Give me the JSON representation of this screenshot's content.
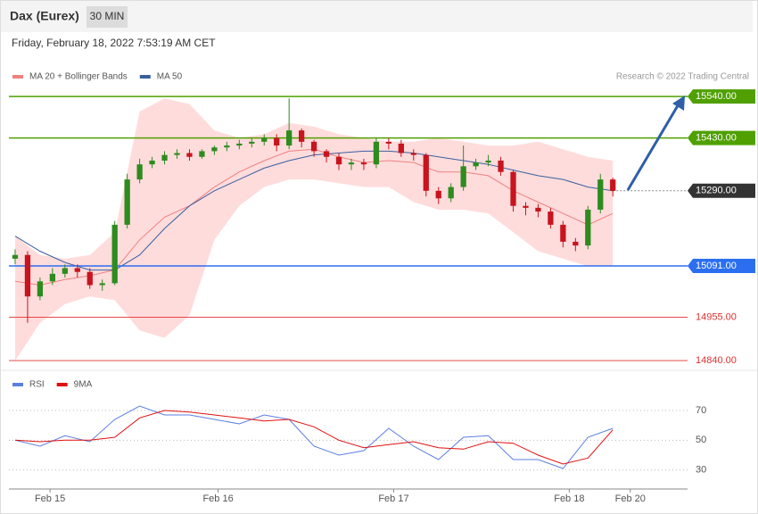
{
  "header": {
    "title": "Dax (Eurex)",
    "interval": "30 MIN",
    "timestamp": "Friday, February 18, 2022 7:53:19 AM CET"
  },
  "chart_data": [
    {
      "type": "candlestick",
      "credit": "Research © 2022 Trading Central",
      "up_color": "#2e8b1e",
      "down_color": "#c8141e",
      "x": [
        0,
        1,
        2,
        3,
        4,
        5,
        6,
        7,
        8,
        9,
        10,
        11,
        12,
        13,
        14,
        15,
        16,
        17,
        18,
        19,
        20,
        21,
        22,
        23,
        24,
        25,
        26,
        27,
        28,
        29,
        30,
        31,
        32,
        33,
        34,
        35,
        36,
        37,
        38,
        39,
        40,
        41,
        42,
        43,
        44,
        45,
        46,
        47,
        48
      ],
      "open": [
        15110,
        15120,
        15010,
        15050,
        15070,
        15085,
        15075,
        15040,
        15045,
        15200,
        15320,
        15360,
        15370,
        15385,
        15390,
        15380,
        15395,
        15405,
        15410,
        15415,
        15420,
        15430,
        15410,
        15450,
        15420,
        15395,
        15380,
        15360,
        15365,
        15360,
        15420,
        15415,
        15390,
        15385,
        15290,
        15270,
        15300,
        15355,
        15365,
        15370,
        15340,
        15250,
        15245,
        15235,
        15200,
        15155,
        15145,
        15240,
        15320
      ],
      "high": [
        15135,
        15130,
        15060,
        15085,
        15095,
        15095,
        15085,
        15055,
        15210,
        15335,
        15375,
        15380,
        15395,
        15400,
        15400,
        15400,
        15410,
        15420,
        15425,
        15430,
        15440,
        15440,
        15535,
        15455,
        15425,
        15400,
        15390,
        15375,
        15375,
        15430,
        15430,
        15425,
        15400,
        15390,
        15300,
        15310,
        15410,
        15375,
        15385,
        15380,
        15345,
        15260,
        15255,
        15245,
        15210,
        15165,
        15250,
        15335,
        15325
      ],
      "low": [
        15095,
        14940,
        15000,
        15040,
        15060,
        15060,
        15030,
        15025,
        15040,
        15190,
        15310,
        15350,
        15360,
        15375,
        15370,
        15375,
        15385,
        15395,
        15400,
        15405,
        15410,
        15395,
        15400,
        15405,
        15380,
        15365,
        15345,
        15345,
        15345,
        15350,
        15400,
        15380,
        15370,
        15275,
        15255,
        15260,
        15290,
        15345,
        15355,
        15330,
        15235,
        15225,
        15220,
        15190,
        15140,
        15130,
        15135,
        15230,
        15275
      ],
      "close": [
        15120,
        15010,
        15050,
        15070,
        15085,
        15075,
        15040,
        15045,
        15200,
        15320,
        15360,
        15370,
        15385,
        15390,
        15380,
        15395,
        15405,
        15410,
        15415,
        15420,
        15430,
        15410,
        15450,
        15420,
        15395,
        15380,
        15360,
        15365,
        15360,
        15420,
        15415,
        15390,
        15385,
        15290,
        15270,
        15300,
        15355,
        15365,
        15370,
        15340,
        15250,
        15245,
        15235,
        15200,
        15155,
        15145,
        15240,
        15320,
        15290
      ],
      "overlays": [
        {
          "name": "MA 20 + Bollinger Bands",
          "color": "#f08080",
          "band_color": "#ffdcdc",
          "x": [
            0,
            2,
            4,
            6,
            8,
            10,
            12,
            14,
            16,
            18,
            20,
            22,
            24,
            26,
            28,
            30,
            32,
            34,
            36,
            38,
            40,
            42,
            44,
            46,
            48
          ],
          "values": [
            15050,
            15040,
            15055,
            15065,
            15080,
            15160,
            15220,
            15250,
            15300,
            15340,
            15370,
            15395,
            15400,
            15380,
            15365,
            15370,
            15365,
            15340,
            15340,
            15330,
            15290,
            15260,
            15230,
            15200,
            15230
          ],
          "upper": [
            15170,
            15120,
            15110,
            15120,
            15180,
            15500,
            15535,
            15520,
            15450,
            15430,
            15440,
            15470,
            15460,
            15440,
            15430,
            15420,
            15420,
            15430,
            15420,
            15410,
            15410,
            15420,
            15400,
            15380,
            15370
          ],
          "lower": [
            14840,
            14940,
            14990,
            15010,
            15000,
            14920,
            14900,
            14960,
            15160,
            15250,
            15300,
            15320,
            15320,
            15310,
            15300,
            15300,
            15260,
            15240,
            15240,
            15230,
            15180,
            15130,
            15110,
            15090,
            15090
          ]
        },
        {
          "name": "MA 50",
          "color": "#3a5fa0",
          "x": [
            0,
            2,
            4,
            6,
            8,
            10,
            12,
            14,
            16,
            18,
            20,
            22,
            24,
            26,
            28,
            30,
            32,
            34,
            36,
            38,
            40,
            42,
            44,
            46,
            48
          ],
          "values": [
            15170,
            15130,
            15100,
            15080,
            15080,
            15120,
            15190,
            15250,
            15290,
            15320,
            15350,
            15370,
            15385,
            15390,
            15395,
            15395,
            15390,
            15380,
            15370,
            15360,
            15345,
            15330,
            15320,
            15300,
            15290
          ]
        }
      ],
      "levels": [
        {
          "value": 15540,
          "label": "15540.00",
          "color": "#4fa000",
          "boxed": true
        },
        {
          "value": 15430,
          "label": "15430.00",
          "color": "#4fa000",
          "boxed": true
        },
        {
          "value": 15290,
          "label": "15290.00",
          "color": "#333333",
          "boxed": true
        },
        {
          "value": 15091,
          "label": "15091.00",
          "color": "#2b6ff0",
          "boxed": true
        },
        {
          "value": 14955,
          "label": "14955.00",
          "color": "#e03030",
          "boxed": false
        },
        {
          "value": 14840,
          "label": "14840.00",
          "color": "#e03030",
          "boxed": false
        }
      ],
      "xlim": [
        -0.5,
        54
      ],
      "ylim": [
        14826,
        15571
      ]
    },
    {
      "type": "line",
      "x": [
        0,
        2,
        4,
        6,
        8,
        10,
        12,
        14,
        16,
        18,
        20,
        22,
        24,
        26,
        28,
        30,
        32,
        34,
        36,
        38,
        40,
        42,
        44,
        46,
        48
      ],
      "series": [
        {
          "name": "RSI",
          "color": "#5a7fe0",
          "values": [
            50,
            46,
            53,
            49,
            64,
            73,
            67,
            67,
            64,
            61,
            67,
            64,
            46,
            40,
            43,
            58,
            46,
            37,
            52,
            53,
            37,
            37,
            31,
            52,
            58
          ]
        },
        {
          "name": "9MA",
          "color": "#e01010",
          "values": [
            50,
            49,
            50,
            50,
            52,
            65,
            70,
            69,
            67,
            65,
            63,
            64,
            59,
            50,
            45,
            47,
            49,
            45,
            44,
            49,
            48,
            40,
            34,
            38,
            57
          ]
        }
      ],
      "xlim": [
        -0.5,
        54
      ],
      "ylim": [
        16,
        82
      ],
      "yticks": [
        30,
        50,
        70
      ],
      "xticks": [
        {
          "value": 2.8,
          "label": "Feb 15"
        },
        {
          "value": 16.3,
          "label": "Feb 16"
        },
        {
          "value": 30.4,
          "label": "Feb 17"
        },
        {
          "value": 44.5,
          "label": "Feb 18"
        },
        {
          "value": 49.4,
          "label": "Feb 20"
        }
      ]
    }
  ]
}
